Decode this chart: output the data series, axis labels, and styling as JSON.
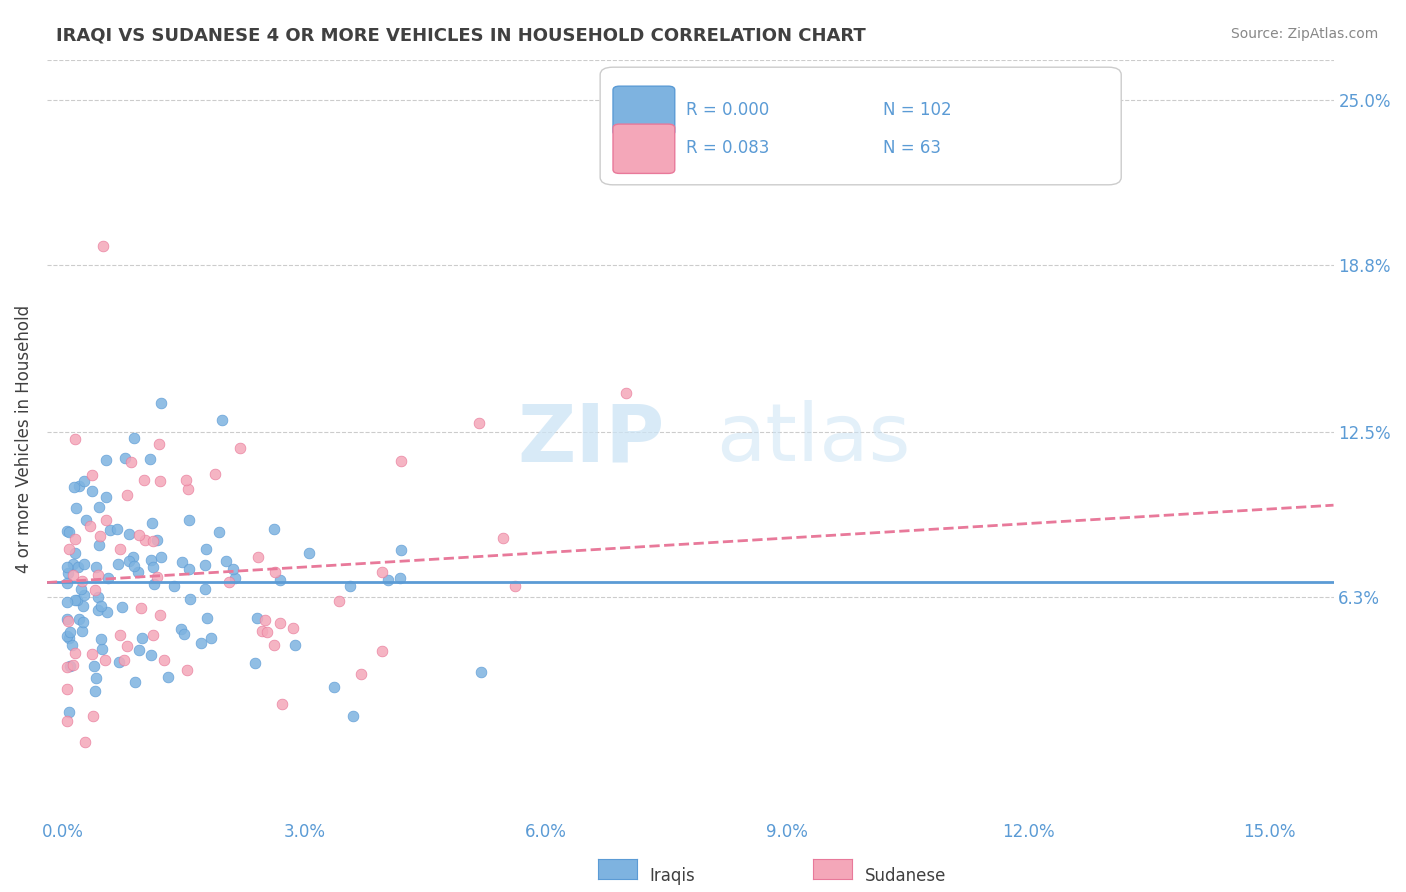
{
  "title": "IRAQI VS SUDANESE 4 OR MORE VEHICLES IN HOUSEHOLD CORRELATION CHART",
  "source_text": "Source: ZipAtlas.com",
  "xlabel_ticks": [
    0.0,
    0.03,
    0.06,
    0.09,
    0.12,
    0.15
  ],
  "xlabel_tick_labels": [
    "0.0%",
    "3.0%",
    "6.0%",
    "9.0%",
    "12.0%",
    "15.0%"
  ],
  "ylabel_ticks": [
    0.063,
    0.125,
    0.188,
    0.25
  ],
  "ylabel_tick_labels": [
    "6.3%",
    "12.5%",
    "18.8%",
    "25.0%"
  ],
  "xlim": [
    -0.002,
    0.158
  ],
  "ylim": [
    -0.02,
    0.265
  ],
  "iraqi_color": "#7eb3e0",
  "iraqi_color_dark": "#5b9bd5",
  "sudanese_color": "#f4a7b9",
  "sudanese_color_dark": "#e8799a",
  "iraqi_R": 0.0,
  "iraqi_N": 102,
  "sudanese_R": 0.083,
  "sudanese_N": 63,
  "ylabel": "4 or more Vehicles in Household",
  "legend_iraqis": "Iraqis",
  "legend_sudanese": "Sudanese",
  "watermark_zip": "ZIP",
  "watermark_atlas": "atlas",
  "grid_color": "#cccccc",
  "title_color": "#404040",
  "label_color": "#5b9bd5",
  "iraqi_seed": 42,
  "sudanese_seed": 99
}
